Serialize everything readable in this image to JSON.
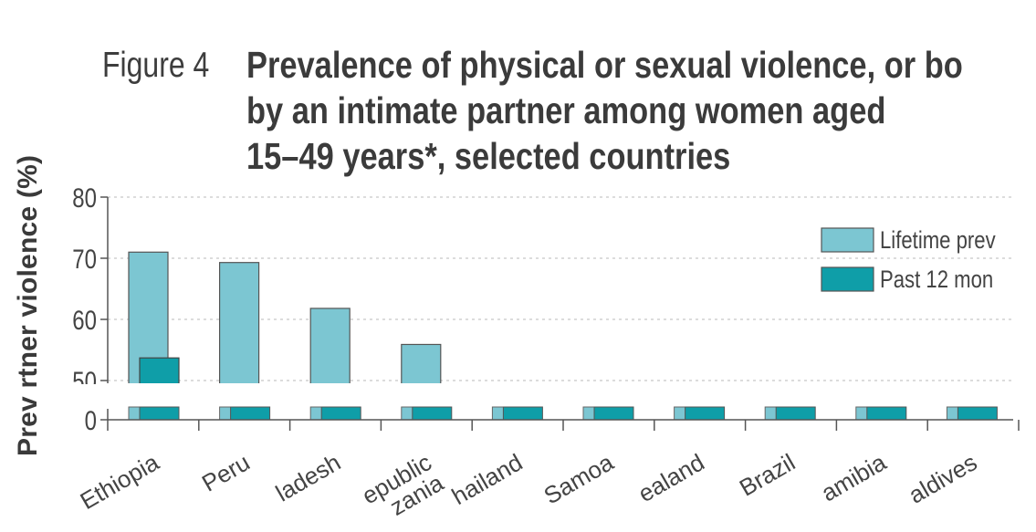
{
  "figure": {
    "label": "Figure 4",
    "title_lines": [
      "Prevalence of physical or sexual violence, or bo",
      "by an intimate partner among women aged",
      "15–49 years*, selected countries"
    ]
  },
  "chart_data": {
    "type": "bar",
    "ylabel": "Prev                    rtner violence (%)",
    "yticks": [
      "0",
      "50",
      "60",
      "70",
      "80"
    ],
    "ylim": [
      0,
      80
    ],
    "axis_break": true,
    "grid": true,
    "legend_position": "top-right",
    "categories": [
      "Ethiopia",
      "Peru",
      "ladesh",
      "epublic\nzania",
      "hailand",
      "Samoa",
      "ealand",
      "Brazil",
      "amibia",
      "aldives"
    ],
    "series": [
      {
        "name": "Lifetime prev",
        "color": "#7cc6d2",
        "values": [
          71,
          69.3,
          61.8,
          55.9,
          null,
          null,
          null,
          null,
          null,
          null
        ]
      },
      {
        "name": "Past 12 mon",
        "color": "#0f9ea8",
        "values": [
          53.7,
          null,
          null,
          null,
          null,
          null,
          null,
          null,
          null,
          null
        ]
      }
    ]
  }
}
